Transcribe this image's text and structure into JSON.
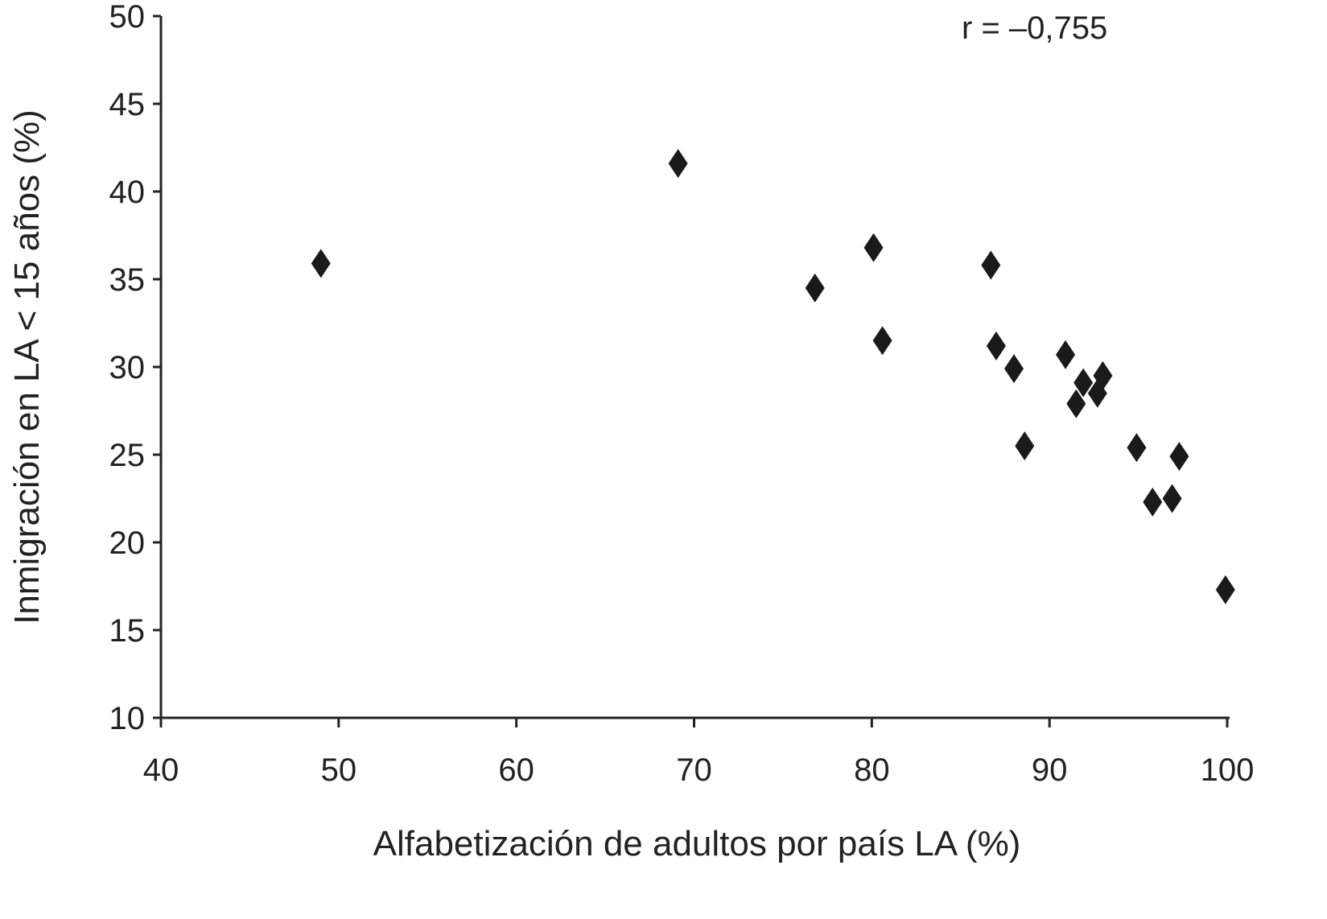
{
  "chart_data": {
    "type": "scatter",
    "xlabel": "Alfabetización de adultos por país LA (%)",
    "ylabel": "Inmigración en LA < 15 años (%)",
    "annotation": "r = –0,755",
    "xlim": [
      40,
      100
    ],
    "ylim": [
      10,
      50
    ],
    "x_ticks": [
      "40",
      "50",
      "60",
      "70",
      "80",
      "90",
      "100"
    ],
    "y_ticks": [
      "10",
      "15",
      "20",
      "25",
      "30",
      "35",
      "40",
      "45",
      "50"
    ],
    "marker": "diamond",
    "marker_color": "#1a1a1a",
    "grid": false,
    "points": [
      {
        "x": 49.0,
        "y": 35.9
      },
      {
        "x": 69.1,
        "y": 41.6
      },
      {
        "x": 76.8,
        "y": 34.5
      },
      {
        "x": 80.1,
        "y": 36.8
      },
      {
        "x": 80.6,
        "y": 31.5
      },
      {
        "x": 86.7,
        "y": 35.8
      },
      {
        "x": 87.0,
        "y": 31.2
      },
      {
        "x": 88.0,
        "y": 29.9
      },
      {
        "x": 88.6,
        "y": 25.5
      },
      {
        "x": 90.9,
        "y": 30.7
      },
      {
        "x": 91.5,
        "y": 27.9
      },
      {
        "x": 91.9,
        "y": 29.1
      },
      {
        "x": 92.7,
        "y": 28.5
      },
      {
        "x": 93.0,
        "y": 29.5
      },
      {
        "x": 94.9,
        "y": 25.4
      },
      {
        "x": 95.8,
        "y": 22.3
      },
      {
        "x": 96.9,
        "y": 22.5
      },
      {
        "x": 97.3,
        "y": 24.9
      },
      {
        "x": 99.9,
        "y": 17.3
      }
    ]
  }
}
